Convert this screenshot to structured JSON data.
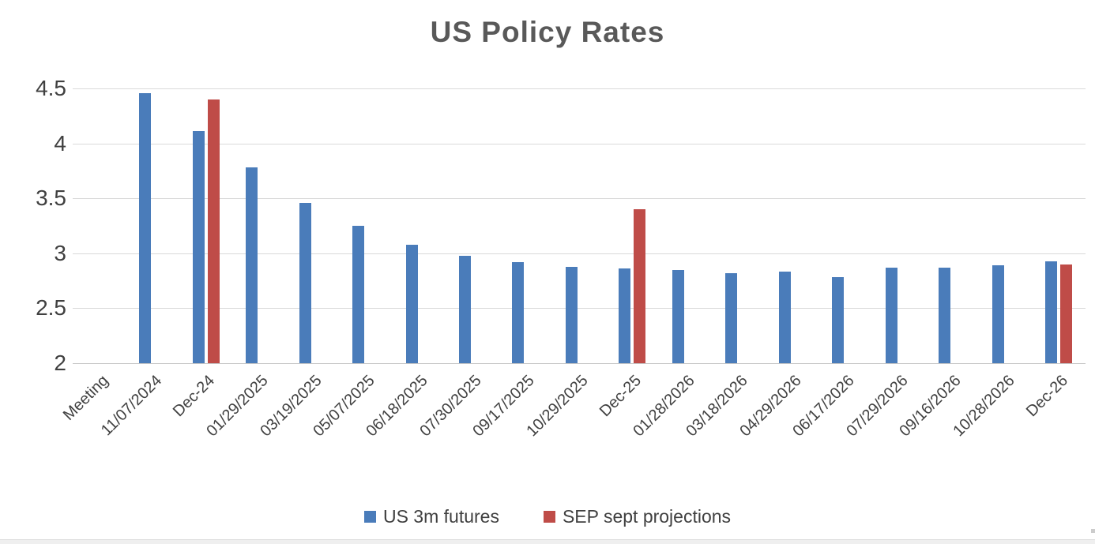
{
  "title": "US Policy Rates",
  "chart_data": {
    "type": "bar",
    "title": "US Policy Rates",
    "categories": [
      "Meeting",
      "11/07/2024",
      "Dec-24",
      "01/29/2025",
      "03/19/2025",
      "05/07/2025",
      "06/18/2025",
      "07/30/2025",
      "09/17/2025",
      "10/29/2025",
      "Dec-25",
      "01/28/2026",
      "03/18/2026",
      "04/29/2026",
      "06/17/2026",
      "07/29/2026",
      "09/16/2026",
      "10/28/2026",
      "Dec-26"
    ],
    "series": [
      {
        "name": "US 3m futures",
        "color": "#4a7cba",
        "values": [
          null,
          4.46,
          4.11,
          3.78,
          3.46,
          3.25,
          3.08,
          2.98,
          2.92,
          2.88,
          2.86,
          2.85,
          2.82,
          2.83,
          2.78,
          2.87,
          2.87,
          2.89,
          2.93
        ]
      },
      {
        "name": "SEP sept projections",
        "color": "#bf4c48",
        "values": [
          null,
          null,
          4.4,
          null,
          null,
          null,
          null,
          null,
          null,
          null,
          3.4,
          null,
          null,
          null,
          null,
          null,
          null,
          null,
          2.9
        ]
      }
    ],
    "xlabel": "",
    "ylabel": "",
    "ylim": [
      2,
      4.5
    ],
    "yticks": [
      "4.5",
      "4",
      "3.5",
      "3",
      "2.5",
      "2"
    ],
    "grid": "horizontal",
    "legend_position": "bottom",
    "colors": {
      "title_text": "#595959",
      "tick_text": "#404040",
      "gridline": "#d9d9d9"
    }
  }
}
